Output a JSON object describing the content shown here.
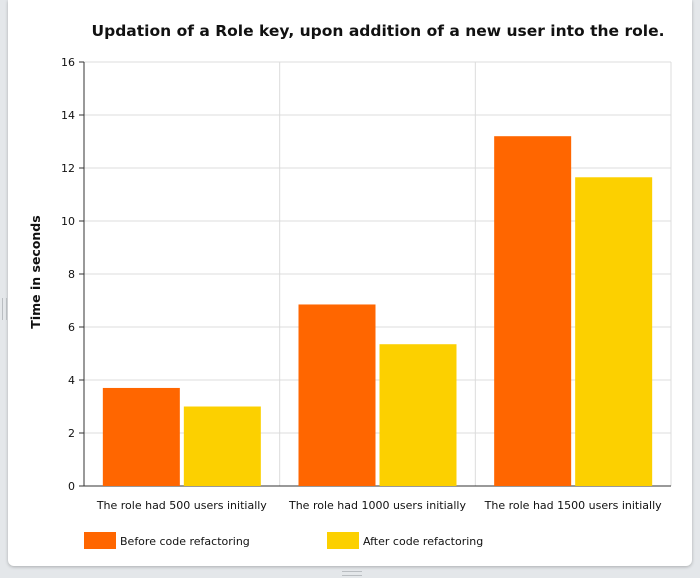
{
  "chart_data": {
    "type": "bar",
    "title": "Updation of a Role key, upon addition of a new user into the role.",
    "xlabel": "",
    "ylabel": "Time in seconds",
    "ylim": [
      0,
      16
    ],
    "yticks": [
      0,
      2,
      4,
      6,
      8,
      10,
      12,
      14,
      16
    ],
    "grid": true,
    "legend_position": "bottom",
    "categories": [
      "The role had 500 users initially",
      "The role had 1000 users initially",
      "The role had 1500 users initially"
    ],
    "series": [
      {
        "name": "Before code refactoring",
        "color": "#ff6600",
        "values": [
          3.7,
          6.85,
          13.2
        ]
      },
      {
        "name": "After code refactoring",
        "color": "#fcd000",
        "values": [
          3.0,
          5.35,
          11.65
        ]
      }
    ]
  }
}
